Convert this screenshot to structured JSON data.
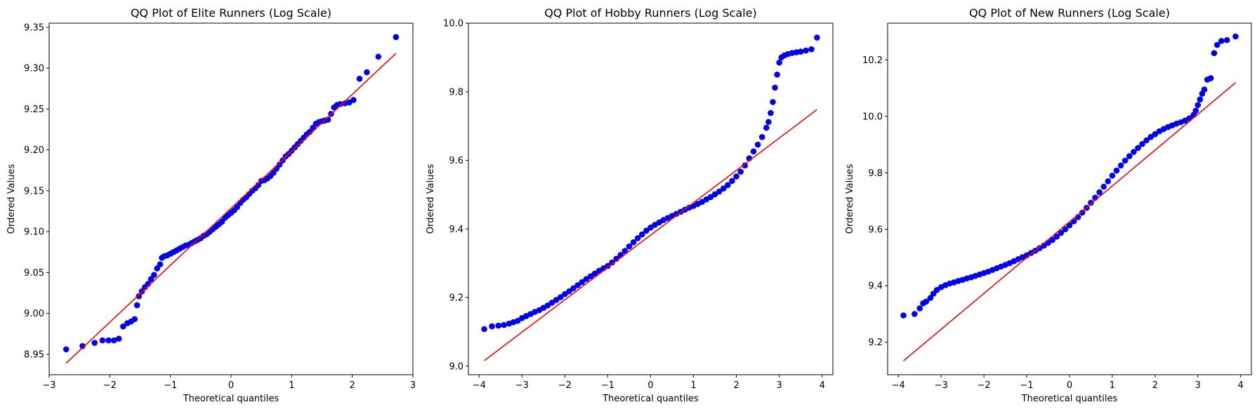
{
  "figure": {
    "point_color": "#0000ff",
    "line_color": "#ff0000"
  },
  "chart_data": [
    {
      "type": "scatter",
      "title": "QQ Plot of Elite Runners (Log Scale)",
      "xlabel": "Theoretical quantiles",
      "ylabel": "Ordered Values",
      "xlim": [
        -3,
        3
      ],
      "ylim": [
        8.925,
        9.355
      ],
      "xticks": [
        -3,
        -2,
        -1,
        0,
        1,
        2,
        3
      ],
      "xtick_labels": [
        "−3",
        "−2",
        "−1",
        "0",
        "1",
        "2",
        "3"
      ],
      "yticks": [
        8.95,
        9.0,
        9.05,
        9.1,
        9.15,
        9.2,
        9.25,
        9.3,
        9.35
      ],
      "ytick_labels": [
        "8.95",
        "9.00",
        "9.05",
        "9.10",
        "9.15",
        "9.20",
        "9.25",
        "9.30",
        "9.35"
      ],
      "fit_line": {
        "x": [
          -2.72,
          2.72
        ],
        "y": [
          8.939,
          9.318
        ]
      },
      "points": [
        [
          -2.72,
          8.956
        ],
        [
          -2.45,
          8.96
        ],
        [
          -2.25,
          8.964
        ],
        [
          -2.12,
          8.967
        ],
        [
          -2.02,
          8.967
        ],
        [
          -1.93,
          8.967
        ],
        [
          -1.85,
          8.969
        ],
        [
          -1.78,
          8.984
        ],
        [
          -1.71,
          8.988
        ],
        [
          -1.65,
          8.99
        ],
        [
          -1.59,
          8.993
        ],
        [
          -1.55,
          9.01
        ],
        [
          -1.52,
          9.021
        ],
        [
          -1.47,
          9.027
        ],
        [
          -1.42,
          9.032
        ],
        [
          -1.37,
          9.036
        ],
        [
          -1.32,
          9.042
        ],
        [
          -1.27,
          9.047
        ],
        [
          -1.22,
          9.055
        ],
        [
          -1.17,
          9.06
        ],
        [
          -1.14,
          9.068
        ],
        [
          -1.1,
          9.07
        ],
        [
          -1.05,
          9.071
        ],
        [
          -1.0,
          9.073
        ],
        [
          -0.95,
          9.075
        ],
        [
          -0.9,
          9.077
        ],
        [
          -0.85,
          9.079
        ],
        [
          -0.8,
          9.081
        ],
        [
          -0.75,
          9.083
        ],
        [
          -0.7,
          9.084
        ],
        [
          -0.65,
          9.086
        ],
        [
          -0.6,
          9.088
        ],
        [
          -0.55,
          9.09
        ],
        [
          -0.5,
          9.092
        ],
        [
          -0.45,
          9.095
        ],
        [
          -0.4,
          9.097
        ],
        [
          -0.35,
          9.1
        ],
        [
          -0.3,
          9.103
        ],
        [
          -0.25,
          9.106
        ],
        [
          -0.2,
          9.109
        ],
        [
          -0.15,
          9.112
        ],
        [
          -0.1,
          9.117
        ],
        [
          -0.05,
          9.12
        ],
        [
          0.0,
          9.123
        ],
        [
          0.05,
          9.126
        ],
        [
          0.1,
          9.13
        ],
        [
          0.15,
          9.135
        ],
        [
          0.2,
          9.139
        ],
        [
          0.25,
          9.142
        ],
        [
          0.3,
          9.146
        ],
        [
          0.35,
          9.15
        ],
        [
          0.4,
          9.153
        ],
        [
          0.45,
          9.157
        ],
        [
          0.5,
          9.162
        ],
        [
          0.55,
          9.163
        ],
        [
          0.6,
          9.165
        ],
        [
          0.65,
          9.168
        ],
        [
          0.7,
          9.172
        ],
        [
          0.75,
          9.177
        ],
        [
          0.8,
          9.182
        ],
        [
          0.85,
          9.187
        ],
        [
          0.9,
          9.192
        ],
        [
          0.95,
          9.195
        ],
        [
          1.0,
          9.199
        ],
        [
          1.05,
          9.203
        ],
        [
          1.1,
          9.207
        ],
        [
          1.15,
          9.211
        ],
        [
          1.2,
          9.215
        ],
        [
          1.25,
          9.219
        ],
        [
          1.3,
          9.222
        ],
        [
          1.35,
          9.227
        ],
        [
          1.4,
          9.232
        ],
        [
          1.45,
          9.234
        ],
        [
          1.5,
          9.235
        ],
        [
          1.55,
          9.236
        ],
        [
          1.6,
          9.237
        ],
        [
          1.65,
          9.244
        ],
        [
          1.7,
          9.252
        ],
        [
          1.75,
          9.255
        ],
        [
          1.8,
          9.256
        ],
        [
          1.88,
          9.257
        ],
        [
          1.95,
          9.258
        ],
        [
          2.02,
          9.261
        ],
        [
          2.12,
          9.287
        ],
        [
          2.24,
          9.295
        ],
        [
          2.43,
          9.314
        ],
        [
          2.72,
          9.338
        ]
      ]
    },
    {
      "type": "scatter",
      "title": "QQ Plot of Hobby Runners (Log Scale)",
      "xlabel": "Theoretical quantiles",
      "ylabel": "Ordered Values",
      "xlim": [
        -4.25,
        4.25
      ],
      "ylim": [
        8.975,
        10.0
      ],
      "xticks": [
        -4,
        -3,
        -2,
        -1,
        0,
        1,
        2,
        3,
        4
      ],
      "xtick_labels": [
        "−4",
        "−3",
        "−2",
        "−1",
        "0",
        "1",
        "2",
        "3",
        "4"
      ],
      "yticks": [
        9.0,
        9.2,
        9.4,
        9.6,
        9.8,
        10.0
      ],
      "ytick_labels": [
        "9.0",
        "9.2",
        "9.4",
        "9.6",
        "9.8",
        "10.0"
      ],
      "fit_line": {
        "x": [
          -3.88,
          3.88
        ],
        "y": [
          9.016,
          9.748
        ]
      },
      "points": [
        [
          -3.88,
          9.108
        ],
        [
          -3.7,
          9.116
        ],
        [
          -3.55,
          9.118
        ],
        [
          -3.42,
          9.12
        ],
        [
          -3.3,
          9.124
        ],
        [
          -3.2,
          9.128
        ],
        [
          -3.1,
          9.132
        ],
        [
          -3.0,
          9.14
        ],
        [
          -2.9,
          9.146
        ],
        [
          -2.8,
          9.152
        ],
        [
          -2.7,
          9.158
        ],
        [
          -2.6,
          9.163
        ],
        [
          -2.5,
          9.17
        ],
        [
          -2.4,
          9.177
        ],
        [
          -2.3,
          9.185
        ],
        [
          -2.2,
          9.193
        ],
        [
          -2.1,
          9.201
        ],
        [
          -2.0,
          9.21
        ],
        [
          -1.9,
          9.218
        ],
        [
          -1.8,
          9.227
        ],
        [
          -1.7,
          9.236
        ],
        [
          -1.6,
          9.245
        ],
        [
          -1.5,
          9.254
        ],
        [
          -1.4,
          9.262
        ],
        [
          -1.3,
          9.27
        ],
        [
          -1.2,
          9.278
        ],
        [
          -1.1,
          9.285
        ],
        [
          -1.0,
          9.292
        ],
        [
          -0.9,
          9.302
        ],
        [
          -0.8,
          9.313
        ],
        [
          -0.7,
          9.324
        ],
        [
          -0.6,
          9.336
        ],
        [
          -0.5,
          9.349
        ],
        [
          -0.4,
          9.361
        ],
        [
          -0.3,
          9.373
        ],
        [
          -0.2,
          9.384
        ],
        [
          -0.1,
          9.395
        ],
        [
          0.0,
          9.404
        ],
        [
          0.1,
          9.412
        ],
        [
          0.2,
          9.419
        ],
        [
          0.3,
          9.426
        ],
        [
          0.4,
          9.432
        ],
        [
          0.5,
          9.438
        ],
        [
          0.6,
          9.444
        ],
        [
          0.7,
          9.45
        ],
        [
          0.8,
          9.456
        ],
        [
          0.9,
          9.462
        ],
        [
          1.0,
          9.467
        ],
        [
          1.1,
          9.473
        ],
        [
          1.2,
          9.479
        ],
        [
          1.3,
          9.486
        ],
        [
          1.4,
          9.493
        ],
        [
          1.5,
          9.501
        ],
        [
          1.6,
          9.509
        ],
        [
          1.7,
          9.518
        ],
        [
          1.8,
          9.528
        ],
        [
          1.9,
          9.54
        ],
        [
          2.0,
          9.553
        ],
        [
          2.1,
          9.567
        ],
        [
          2.2,
          9.585
        ],
        [
          2.3,
          9.606
        ],
        [
          2.4,
          9.626
        ],
        [
          2.5,
          9.646
        ],
        [
          2.6,
          9.668
        ],
        [
          2.7,
          9.695
        ],
        [
          2.75,
          9.712
        ],
        [
          2.8,
          9.738
        ],
        [
          2.85,
          9.77
        ],
        [
          2.9,
          9.812
        ],
        [
          2.95,
          9.85
        ],
        [
          3.0,
          9.885
        ],
        [
          3.05,
          9.9
        ],
        [
          3.12,
          9.906
        ],
        [
          3.2,
          9.91
        ],
        [
          3.3,
          9.913
        ],
        [
          3.4,
          9.915
        ],
        [
          3.5,
          9.917
        ],
        [
          3.62,
          9.92
        ],
        [
          3.75,
          9.924
        ],
        [
          3.88,
          9.958
        ]
      ]
    },
    {
      "type": "scatter",
      "title": "QQ Plot of New Runners (Log Scale)",
      "xlabel": "Theoretical quantiles",
      "ylabel": "Ordered Values",
      "xlim": [
        -4.25,
        4.25
      ],
      "ylim": [
        9.085,
        10.33
      ],
      "xticks": [
        -4,
        -3,
        -2,
        -1,
        0,
        1,
        2,
        3,
        4
      ],
      "xtick_labels": [
        "−4",
        "−3",
        "−2",
        "−1",
        "0",
        "1",
        "2",
        "3",
        "4"
      ],
      "yticks": [
        9.2,
        9.4,
        9.6,
        9.8,
        10.0,
        10.2
      ],
      "ytick_labels": [
        "9.2",
        "9.4",
        "9.6",
        "9.8",
        "10.0",
        "10.2"
      ],
      "fit_line": {
        "x": [
          -3.88,
          3.88
        ],
        "y": [
          9.134,
          10.119
        ]
      },
      "points": [
        [
          -3.88,
          9.295
        ],
        [
          -3.62,
          9.3
        ],
        [
          -3.5,
          9.32
        ],
        [
          -3.42,
          9.338
        ],
        [
          -3.35,
          9.344
        ],
        [
          -3.25,
          9.357
        ],
        [
          -3.18,
          9.372
        ],
        [
          -3.1,
          9.385
        ],
        [
          -3.0,
          9.395
        ],
        [
          -2.9,
          9.402
        ],
        [
          -2.8,
          9.408
        ],
        [
          -2.7,
          9.412
        ],
        [
          -2.6,
          9.417
        ],
        [
          -2.5,
          9.421
        ],
        [
          -2.4,
          9.426
        ],
        [
          -2.3,
          9.43
        ],
        [
          -2.2,
          9.435
        ],
        [
          -2.1,
          9.44
        ],
        [
          -2.0,
          9.445
        ],
        [
          -1.9,
          9.45
        ],
        [
          -1.8,
          9.456
        ],
        [
          -1.7,
          9.462
        ],
        [
          -1.6,
          9.468
        ],
        [
          -1.5,
          9.474
        ],
        [
          -1.4,
          9.48
        ],
        [
          -1.3,
          9.487
        ],
        [
          -1.2,
          9.494
        ],
        [
          -1.1,
          9.501
        ],
        [
          -1.0,
          9.508
        ],
        [
          -0.9,
          9.516
        ],
        [
          -0.8,
          9.524
        ],
        [
          -0.7,
          9.533
        ],
        [
          -0.6,
          9.542
        ],
        [
          -0.5,
          9.552
        ],
        [
          -0.4,
          9.562
        ],
        [
          -0.3,
          9.574
        ],
        [
          -0.2,
          9.587
        ],
        [
          -0.1,
          9.6
        ],
        [
          0.0,
          9.614
        ],
        [
          0.1,
          9.628
        ],
        [
          0.2,
          9.643
        ],
        [
          0.3,
          9.659
        ],
        [
          0.4,
          9.676
        ],
        [
          0.5,
          9.694
        ],
        [
          0.6,
          9.712
        ],
        [
          0.7,
          9.731
        ],
        [
          0.8,
          9.751
        ],
        [
          0.9,
          9.77
        ],
        [
          1.0,
          9.79
        ],
        [
          1.1,
          9.808
        ],
        [
          1.2,
          9.826
        ],
        [
          1.3,
          9.843
        ],
        [
          1.4,
          9.859
        ],
        [
          1.5,
          9.874
        ],
        [
          1.6,
          9.888
        ],
        [
          1.7,
          9.902
        ],
        [
          1.8,
          9.915
        ],
        [
          1.9,
          9.927
        ],
        [
          2.0,
          9.937
        ],
        [
          2.1,
          9.947
        ],
        [
          2.2,
          9.955
        ],
        [
          2.3,
          9.962
        ],
        [
          2.4,
          9.968
        ],
        [
          2.5,
          9.974
        ],
        [
          2.6,
          9.979
        ],
        [
          2.7,
          9.985
        ],
        [
          2.8,
          9.993
        ],
        [
          2.9,
          10.005
        ],
        [
          2.95,
          10.02
        ],
        [
          3.0,
          10.04
        ],
        [
          3.05,
          10.06
        ],
        [
          3.1,
          10.08
        ],
        [
          3.15,
          10.095
        ],
        [
          3.22,
          10.13
        ],
        [
          3.3,
          10.135
        ],
        [
          3.38,
          10.224
        ],
        [
          3.45,
          10.253
        ],
        [
          3.55,
          10.267
        ],
        [
          3.68,
          10.27
        ],
        [
          3.88,
          10.283
        ]
      ]
    }
  ]
}
